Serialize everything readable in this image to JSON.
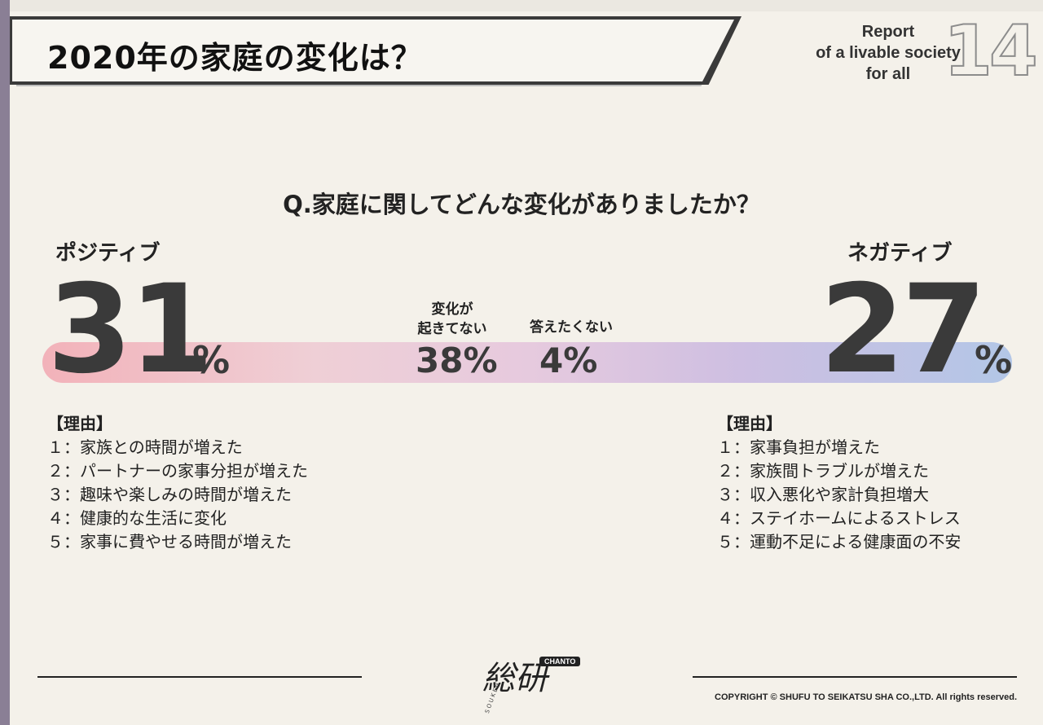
{
  "header": {
    "title": "2020年の家庭の変化は？",
    "report_line1": "Report",
    "report_line2": "of a livable society",
    "report_line3": "for all",
    "page_number": "14"
  },
  "question": "Q.家庭に関してどんな変化がありましたか？",
  "positive": {
    "label": "ポジティブ",
    "value": "31",
    "unit": "%"
  },
  "negative": {
    "label": "ネガティブ",
    "value": "27",
    "unit": "%"
  },
  "no_change": {
    "caption_line1": "変化が",
    "caption_line2": "起きてない",
    "value": "38%"
  },
  "no_answer": {
    "caption": "答えたくない",
    "value": "4%"
  },
  "reasons_positive": {
    "heading": "【理由】",
    "items": [
      "１：家族との時間が増えた",
      "２：パートナーの家事分担が増えた",
      "３：趣味や楽しみの時間が増えた",
      "４：健康的な生活に変化",
      "５：家事に費やせる時間が増えた"
    ]
  },
  "reasons_negative": {
    "heading": "【理由】",
    "items": [
      "１：家事負担が増えた",
      "２：家族間トラブルが増えた",
      "３：収入悪化や家計負担増大",
      "４：ステイホームによるストレス",
      "５：運動不足による健康面の不安"
    ]
  },
  "footer": {
    "logo_text": "総研",
    "logo_badge": "CHANTO",
    "logo_sub": "SOUKEN",
    "copyright": "COPYRIGHT © SHUFU TO SEIKATSU SHA CO.,LTD. All rights reserved."
  },
  "colors": {
    "bar_left": "#f2a7b1",
    "bar_right": "#a7bfe6",
    "accent_strip": "#8a7f95"
  }
}
